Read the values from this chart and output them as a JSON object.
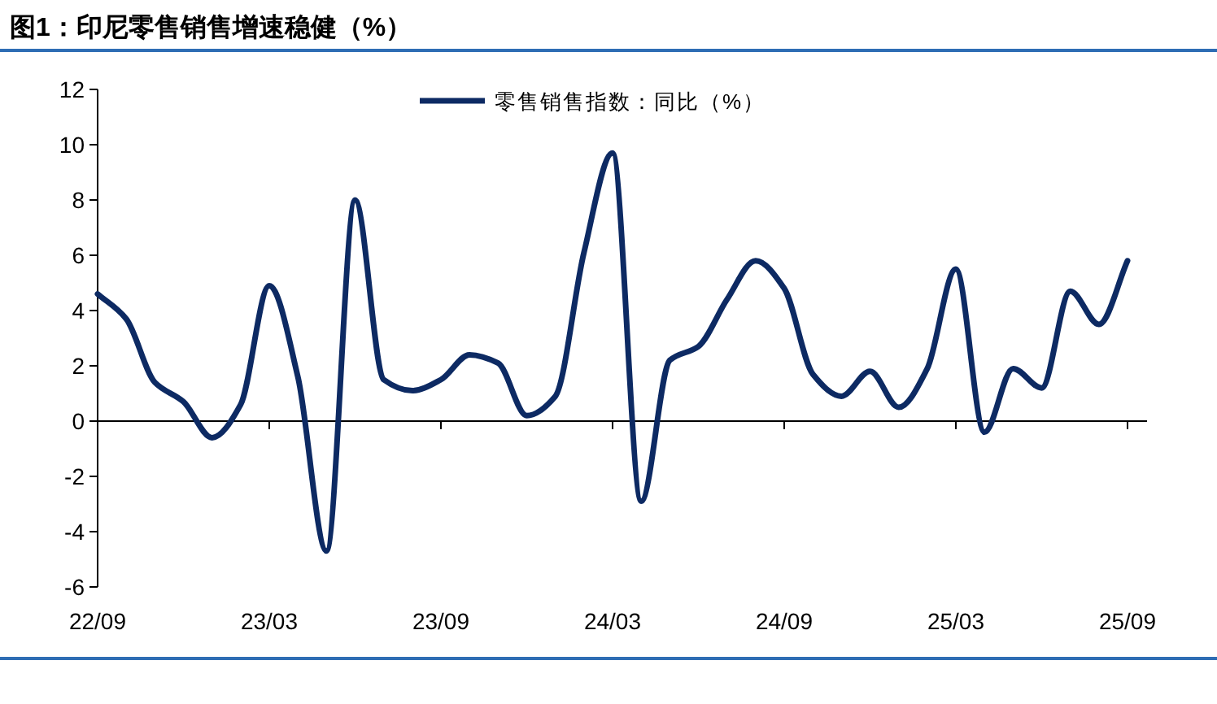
{
  "chart_data": {
    "type": "line",
    "title": "图1：印尼零售销售增速稳健（%）",
    "categories": [
      "22/09",
      null,
      null,
      null,
      null,
      null,
      "23/03",
      null,
      null,
      null,
      null,
      null,
      "23/09",
      null,
      null,
      null,
      null,
      null,
      "24/03",
      null,
      null,
      null,
      null,
      null,
      "24/09",
      null,
      null,
      null,
      null,
      null,
      "25/03",
      null,
      null,
      null,
      null,
      null,
      "25/09"
    ],
    "series": [
      {
        "name": "零售销售指数：同比（%）",
        "color": "#0d2a63",
        "values": [
          4.6,
          3.7,
          1.4,
          0.7,
          -0.6,
          0.6,
          4.9,
          1.6,
          -4.7,
          8.0,
          1.5,
          1.1,
          1.5,
          2.4,
          2.1,
          0.2,
          0.9,
          6.1,
          9.7,
          -2.9,
          2.2,
          2.7,
          4.4,
          5.8,
          4.8,
          1.7,
          0.9,
          1.8,
          0.5,
          1.9,
          5.5,
          -0.4,
          1.9,
          1.2,
          4.7,
          3.5,
          5.8
        ]
      }
    ],
    "ylim": [
      -6,
      12
    ],
    "yticks": [
      -6,
      -4,
      -2,
      0,
      2,
      4,
      6,
      8,
      10,
      12
    ],
    "ref_lines": [
      {
        "axis": "y",
        "value": 0,
        "color": "#000000",
        "line_style": "solid"
      }
    ],
    "grid": false,
    "legend": "top",
    "marker": "none",
    "line_style": "solid"
  }
}
